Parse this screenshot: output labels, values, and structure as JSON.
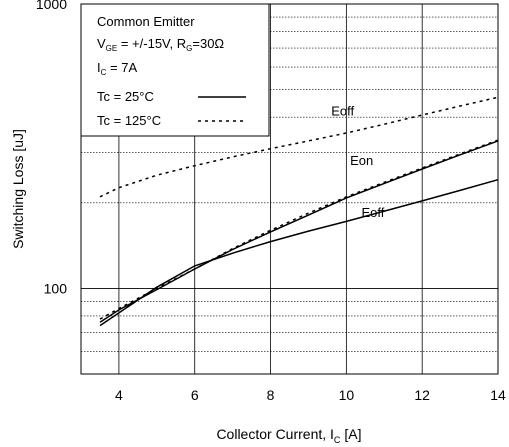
{
  "chart_data": {
    "type": "line",
    "xlabel": "Collector Current, I",
    "xlabel_sub": "C",
    "xlabel_unit": "[A]",
    "ylabel": "Switching Loss [uJ]",
    "xlim": [
      3,
      14
    ],
    "ylim": [
      50,
      1000
    ],
    "yscale": "log",
    "x_ticks": [
      4,
      6,
      8,
      10,
      12,
      14
    ],
    "y_ticks": [
      100,
      1000
    ],
    "grid": true,
    "legend": {
      "placement": "top-left",
      "line1": "Common Emitter",
      "line2_a": "V",
      "line2_sub": "GE",
      "line2_b": " = +/-15V, R",
      "line2_sub2": "G",
      "line2_c": "=30Ω",
      "line3_a": "I",
      "line3_sub": "C",
      "line3_b": " = 7A",
      "tc25": "Tc =  25°C",
      "tc125": "Tc = 125°C"
    },
    "series": [
      {
        "curve": "Eon 25C",
        "style": "solid",
        "x": [
          3.5,
          4,
          5,
          6,
          7,
          8,
          9,
          10,
          11,
          12,
          13,
          14
        ],
        "y": [
          76,
          84,
          99,
          117,
          137,
          158,
          181,
          208,
          234,
          263,
          295,
          330
        ]
      },
      {
        "curve": "Eon 125C",
        "style": "dotted",
        "x": [
          3.5,
          4,
          5,
          6,
          7,
          8,
          9,
          10,
          11,
          12,
          13,
          14
        ],
        "y": [
          78,
          85,
          100,
          117,
          138,
          160,
          184,
          210,
          236,
          265,
          297,
          332
        ]
      },
      {
        "curve": "Eoff 25C",
        "style": "solid",
        "x": [
          3.5,
          4,
          5,
          6,
          7,
          8,
          9,
          10,
          11,
          12,
          13,
          14
        ],
        "y": [
          74,
          82,
          101,
          120,
          133,
          146,
          159,
          172,
          187,
          203,
          221,
          241
        ]
      },
      {
        "curve": "Eoff 125C",
        "style": "dotted",
        "x": [
          3.5,
          4,
          5,
          6,
          7,
          8,
          9,
          10,
          11,
          12,
          13,
          14
        ],
        "y": [
          210,
          226,
          250,
          270,
          290,
          310,
          330,
          352,
          378,
          407,
          438,
          470
        ]
      }
    ],
    "annotations": [
      {
        "text": "Eoff",
        "x": 9.6,
        "y": 405
      },
      {
        "text": "Eon",
        "x": 10.1,
        "y": 272
      },
      {
        "text": "Eoff",
        "x": 10.4,
        "y": 178
      }
    ]
  },
  "colors": {
    "line": "#000000",
    "background": "#ffffff"
  }
}
